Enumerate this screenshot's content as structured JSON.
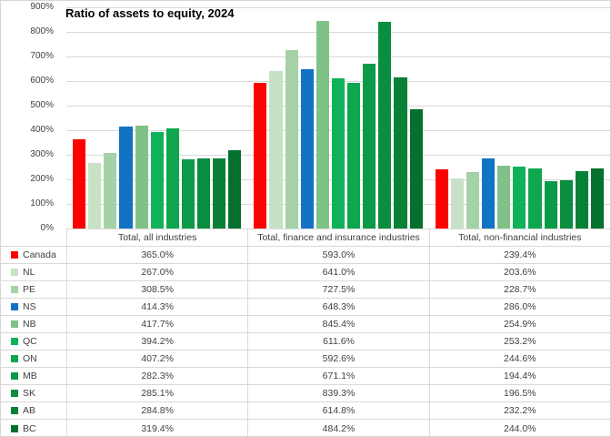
{
  "title": "Ratio of assets to equity, 2024",
  "chart_data": {
    "type": "bar",
    "title": "Ratio of assets to equity, 2024",
    "categories": [
      "Total, all industries",
      "Total, finance and insurance industries",
      "Total, non-financial industries"
    ],
    "series": [
      {
        "name": "Canada",
        "color": "#FF0000",
        "values": [
          365.0,
          593.0,
          239.4
        ]
      },
      {
        "name": "NL",
        "color": "#C7E1C7",
        "values": [
          267.0,
          641.0,
          203.6
        ]
      },
      {
        "name": "PE",
        "color": "#A5D1A7",
        "values": [
          308.5,
          727.5,
          228.7
        ]
      },
      {
        "name": "NS",
        "color": "#1272C4",
        "values": [
          414.3,
          648.3,
          286.0
        ]
      },
      {
        "name": "NB",
        "color": "#7FC287",
        "values": [
          417.7,
          845.4,
          254.9
        ]
      },
      {
        "name": "QC",
        "color": "#10B259",
        "values": [
          394.2,
          611.6,
          253.2
        ]
      },
      {
        "name": "ON",
        "color": "#0EA750",
        "values": [
          407.2,
          592.6,
          244.6
        ]
      },
      {
        "name": "MB",
        "color": "#0B9A47",
        "values": [
          282.3,
          671.1,
          194.4
        ]
      },
      {
        "name": "SK",
        "color": "#098D3E",
        "values": [
          285.1,
          839.3,
          196.5
        ]
      },
      {
        "name": "AB",
        "color": "#068135",
        "values": [
          284.8,
          614.8,
          232.2
        ]
      },
      {
        "name": "BC",
        "color": "#04702D",
        "values": [
          319.4,
          484.2,
          244.0
        ]
      }
    ],
    "xlabel": "",
    "ylabel": "",
    "ylim": [
      0,
      900
    ],
    "y_ticks": [
      "900%",
      "800%",
      "700%",
      "600%",
      "500%",
      "400%",
      "300%",
      "200%",
      "100%",
      "0%"
    ],
    "value_suffix": "%",
    "grid": true,
    "legend_position": "data-table-left",
    "gridline_color": "#D9D9D9"
  }
}
